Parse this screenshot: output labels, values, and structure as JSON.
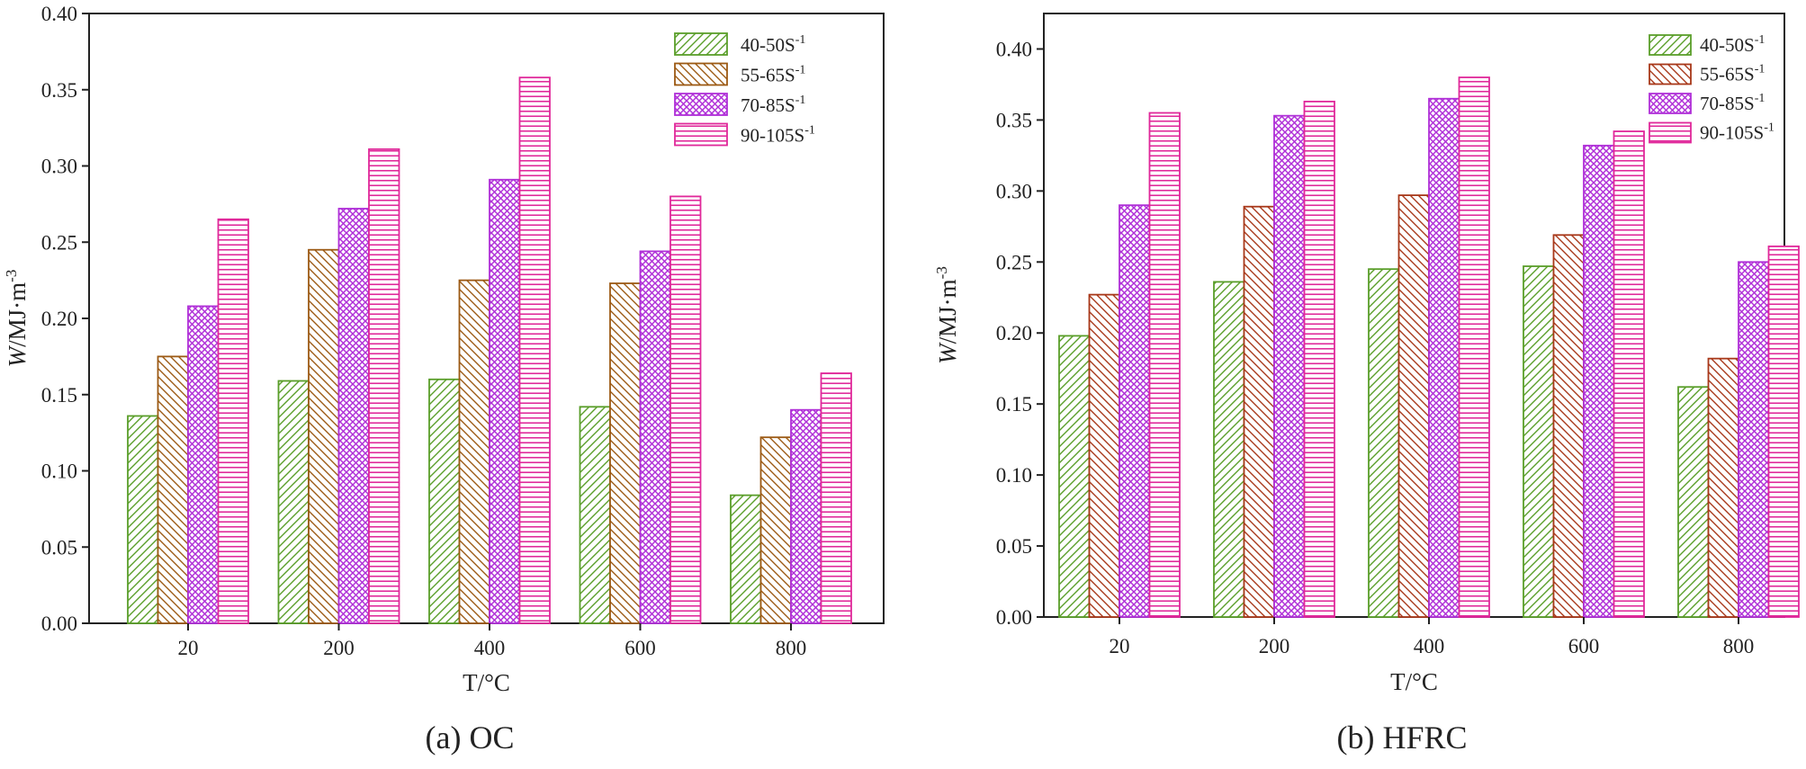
{
  "figure_captions": [
    "(a) OC",
    "(b) HFRC"
  ],
  "colors": {
    "green": "#5a9e2a",
    "brown": "#9c5a14",
    "purple": "#b030d8",
    "pink": "#e0289a",
    "red_brown": "#a8381a"
  },
  "chart_data": [
    {
      "type": "bar",
      "panel": "a",
      "title": "(a) OC",
      "xlabel": "T/°C",
      "ylabel_main": "W",
      "ylabel_rest": "/MJ·m",
      "ylabel_sup": "-3",
      "categories": [
        "20",
        "200",
        "400",
        "600",
        "800"
      ],
      "ylim": [
        0,
        0.4
      ],
      "yticks": [
        "0.00",
        "0.05",
        "0.10",
        "0.15",
        "0.20",
        "0.25",
        "0.30",
        "0.35",
        "0.40"
      ],
      "legend_position": "top-right",
      "series": [
        {
          "name": "40-50S",
          "sup": "-1",
          "color": "#5a9e2a",
          "pattern": "diag-up",
          "values": [
            0.136,
            0.159,
            0.16,
            0.142,
            0.084
          ]
        },
        {
          "name": "55-65S",
          "sup": "-1",
          "color": "#9c5a14",
          "pattern": "diag-down",
          "values": [
            0.175,
            0.245,
            0.225,
            0.223,
            0.122
          ]
        },
        {
          "name": "70-85S",
          "sup": "-1",
          "color": "#b030d8",
          "pattern": "cross",
          "values": [
            0.208,
            0.272,
            0.291,
            0.244,
            0.14
          ]
        },
        {
          "name": "90-105S",
          "sup": "-1",
          "color": "#e0289a",
          "pattern": "horiz",
          "values": [
            0.265,
            0.311,
            0.358,
            0.28,
            0.164
          ]
        }
      ]
    },
    {
      "type": "bar",
      "panel": "b",
      "title": "(b) HFRC",
      "xlabel": "T/°C",
      "ylabel_main": "W",
      "ylabel_rest": "/MJ·m",
      "ylabel_sup": "-3",
      "categories": [
        "20",
        "200",
        "400",
        "600",
        "800"
      ],
      "ylim": [
        0,
        0.425
      ],
      "yticks": [
        "0.00",
        "0.05",
        "0.10",
        "0.15",
        "0.20",
        "0.25",
        "0.30",
        "0.35",
        "0.40"
      ],
      "legend_position": "top-right",
      "series": [
        {
          "name": "40-50S",
          "sup": "-1",
          "color": "#5a9e2a",
          "pattern": "diag-up",
          "values": [
            0.198,
            0.236,
            0.245,
            0.247,
            0.162
          ]
        },
        {
          "name": "55-65S",
          "sup": "-1",
          "color": "#a8381a",
          "pattern": "diag-down",
          "values": [
            0.227,
            0.289,
            0.297,
            0.269,
            0.182
          ]
        },
        {
          "name": "70-85S",
          "sup": "-1",
          "color": "#b030d8",
          "pattern": "cross",
          "values": [
            0.29,
            0.353,
            0.365,
            0.332,
            0.25
          ]
        },
        {
          "name": "90-105S",
          "sup": "-1",
          "color": "#e0289a",
          "pattern": "horiz",
          "values": [
            0.355,
            0.363,
            0.38,
            0.342,
            0.261
          ]
        }
      ]
    }
  ]
}
